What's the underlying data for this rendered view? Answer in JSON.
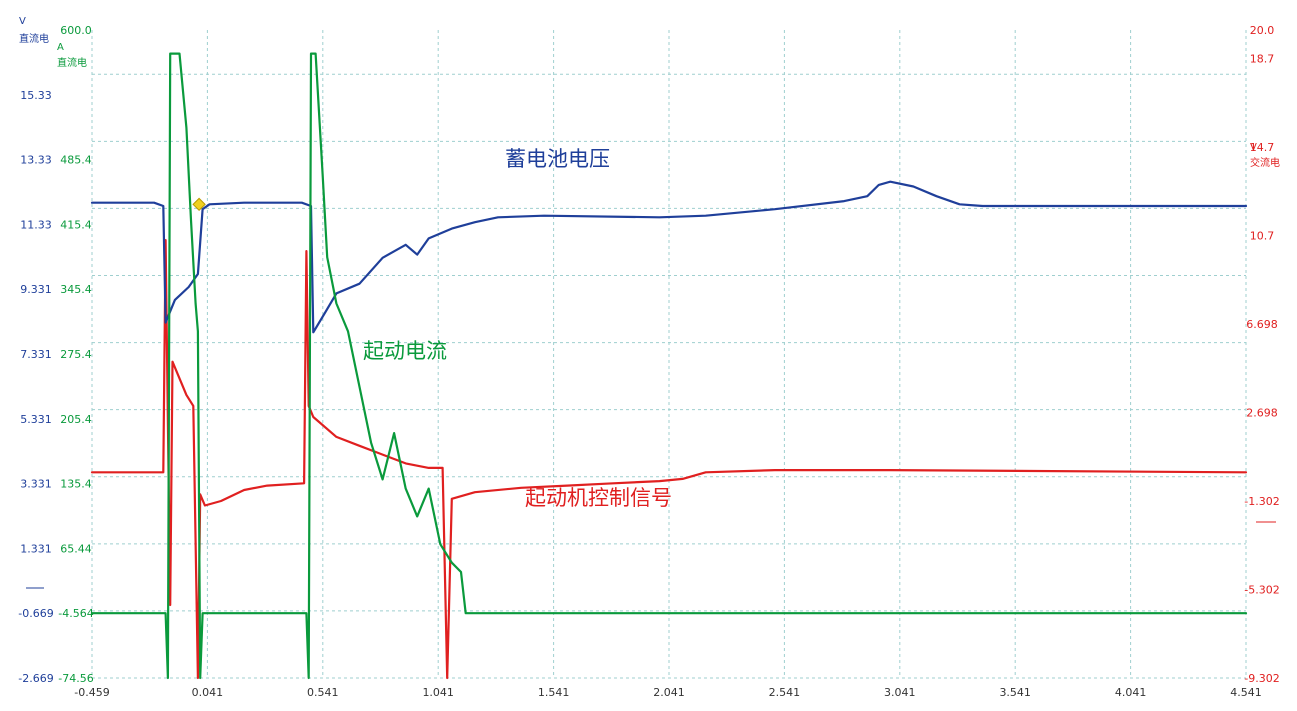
{
  "chart_data": {
    "type": "line",
    "title": "",
    "grid": true,
    "x": {
      "min": -0.459,
      "max": 4.541,
      "ticks": [
        "-0.459",
        "0.041",
        "0.541",
        "1.041",
        "1.541",
        "2.041",
        "2.541",
        "3.041",
        "3.541",
        "4.041",
        "4.541"
      ],
      "tick_values": [
        -0.459,
        0.041,
        0.541,
        1.041,
        1.541,
        2.041,
        2.541,
        3.041,
        3.541,
        4.041,
        4.541
      ]
    },
    "axes": {
      "voltage": {
        "unit": "V",
        "coupling": "直流电",
        "color": "#1f3f9a",
        "side": "left-outer",
        "ylim": [
          -2.669,
          17.331
        ],
        "ticks": [
          "15.33",
          "13.33",
          "11.33",
          "9.331",
          "7.331",
          "5.331",
          "3.331",
          "1.331",
          "-0.669",
          "-2.669"
        ]
      },
      "current": {
        "unit": "A",
        "coupling": "直流电",
        "color": "#0a9a3c",
        "side": "left-inner",
        "ylim": [
          -74.56,
          625.44
        ],
        "ticks": [
          "600.0",
          "485.4",
          "415.4",
          "345.4",
          "275.4",
          "205.4",
          "135.4",
          "65.44",
          "-4.564",
          "-74.56"
        ]
      },
      "signal": {
        "unit": "V",
        "coupling": "交流电",
        "color": "#e02020",
        "side": "right",
        "ylim": [
          -9.302,
          20.0
        ],
        "ticks": [
          "20.0",
          "18.7",
          "14.7",
          "10.7",
          "6.698",
          "2.698",
          "-1.302",
          "-5.302",
          "-9.302"
        ]
      }
    },
    "series": [
      {
        "name": "蓄电池电压",
        "axis": "voltage",
        "color": "#1f3f9a",
        "points": [
          [
            -0.459,
            12.0
          ],
          [
            -0.19,
            12.0
          ],
          [
            -0.15,
            11.9
          ],
          [
            -0.14,
            8.3
          ],
          [
            -0.1,
            9.0
          ],
          [
            -0.04,
            9.4
          ],
          [
            0.0,
            9.8
          ],
          [
            0.02,
            11.8
          ],
          [
            0.05,
            11.95
          ],
          [
            0.2,
            12.0
          ],
          [
            0.45,
            12.0
          ],
          [
            0.49,
            11.9
          ],
          [
            0.5,
            8.0
          ],
          [
            0.55,
            8.6
          ],
          [
            0.6,
            9.2
          ],
          [
            0.7,
            9.5
          ],
          [
            0.8,
            10.3
          ],
          [
            0.85,
            10.5
          ],
          [
            0.9,
            10.7
          ],
          [
            0.95,
            10.4
          ],
          [
            1.0,
            10.9
          ],
          [
            1.1,
            11.2
          ],
          [
            1.2,
            11.4
          ],
          [
            1.3,
            11.55
          ],
          [
            1.5,
            11.6
          ],
          [
            2.0,
            11.55
          ],
          [
            2.2,
            11.6
          ],
          [
            2.5,
            11.8
          ],
          [
            2.8,
            12.05
          ],
          [
            2.9,
            12.2
          ],
          [
            2.95,
            12.55
          ],
          [
            3.0,
            12.65
          ],
          [
            3.1,
            12.5
          ],
          [
            3.2,
            12.2
          ],
          [
            3.3,
            11.95
          ],
          [
            3.4,
            11.9
          ],
          [
            4.541,
            11.9
          ]
        ]
      },
      {
        "name": "起动电流",
        "axis": "current",
        "color": "#0a9a3c",
        "points": [
          [
            -0.459,
            -4.564
          ],
          [
            -0.14,
            -4.564
          ],
          [
            -0.13,
            -74.56
          ],
          [
            -0.12,
            600.0
          ],
          [
            -0.08,
            600.0
          ],
          [
            -0.05,
            520.0
          ],
          [
            -0.03,
            420.0
          ],
          [
            -0.01,
            330.0
          ],
          [
            0.0,
            300.0
          ],
          [
            0.01,
            -74.56
          ],
          [
            0.02,
            -4.564
          ],
          [
            0.47,
            -4.564
          ],
          [
            0.48,
            -74.56
          ],
          [
            0.49,
            600.0
          ],
          [
            0.51,
            600.0
          ],
          [
            0.54,
            470.0
          ],
          [
            0.56,
            380.0
          ],
          [
            0.6,
            330.0
          ],
          [
            0.65,
            300.0
          ],
          [
            0.7,
            240.0
          ],
          [
            0.75,
            180.0
          ],
          [
            0.8,
            140.0
          ],
          [
            0.85,
            190.0
          ],
          [
            0.9,
            130.0
          ],
          [
            0.95,
            100.0
          ],
          [
            1.0,
            130.0
          ],
          [
            1.05,
            70.0
          ],
          [
            1.1,
            50.0
          ],
          [
            1.14,
            40.0
          ],
          [
            1.16,
            -4.564
          ],
          [
            4.541,
            -4.564
          ]
        ]
      },
      {
        "name": "起动机控制信号",
        "axis": "signal",
        "color": "#e02020",
        "points": [
          [
            -0.459,
            0.0
          ],
          [
            -0.15,
            0.0
          ],
          [
            -0.14,
            10.5
          ],
          [
            -0.12,
            -6.0
          ],
          [
            -0.11,
            5.0
          ],
          [
            -0.05,
            3.5
          ],
          [
            -0.02,
            3.0
          ],
          [
            0.0,
            -9.302
          ],
          [
            0.01,
            -1.0
          ],
          [
            0.03,
            -1.5
          ],
          [
            0.1,
            -1.3
          ],
          [
            0.2,
            -0.8
          ],
          [
            0.3,
            -0.6
          ],
          [
            0.46,
            -0.5
          ],
          [
            0.47,
            10.0
          ],
          [
            0.48,
            3.0
          ],
          [
            0.5,
            2.5
          ],
          [
            0.6,
            1.6
          ],
          [
            0.7,
            1.2
          ],
          [
            0.8,
            0.8
          ],
          [
            0.9,
            0.4
          ],
          [
            1.0,
            0.2
          ],
          [
            1.06,
            0.2
          ],
          [
            1.08,
            -9.302
          ],
          [
            1.1,
            -1.2
          ],
          [
            1.2,
            -0.9
          ],
          [
            1.4,
            -0.7
          ],
          [
            1.6,
            -0.6
          ],
          [
            1.8,
            -0.5
          ],
          [
            2.0,
            -0.4
          ],
          [
            2.1,
            -0.3
          ],
          [
            2.2,
            0.0
          ],
          [
            2.5,
            0.1
          ],
          [
            3.0,
            0.1
          ],
          [
            4.541,
            0.0
          ]
        ]
      }
    ],
    "annotations": [
      {
        "text": "蓄电池电压",
        "color": "#1f3f9a",
        "series": "蓄电池电压"
      },
      {
        "text": "起动电流",
        "color": "#0a9a3c",
        "series": "起动电流"
      },
      {
        "text": "起动机控制信号",
        "color": "#e02020",
        "series": "起动机控制信号"
      }
    ],
    "marker": {
      "shape": "diamond",
      "color": "#f0d020",
      "x": 0.005,
      "series": "蓄电池电压"
    }
  }
}
